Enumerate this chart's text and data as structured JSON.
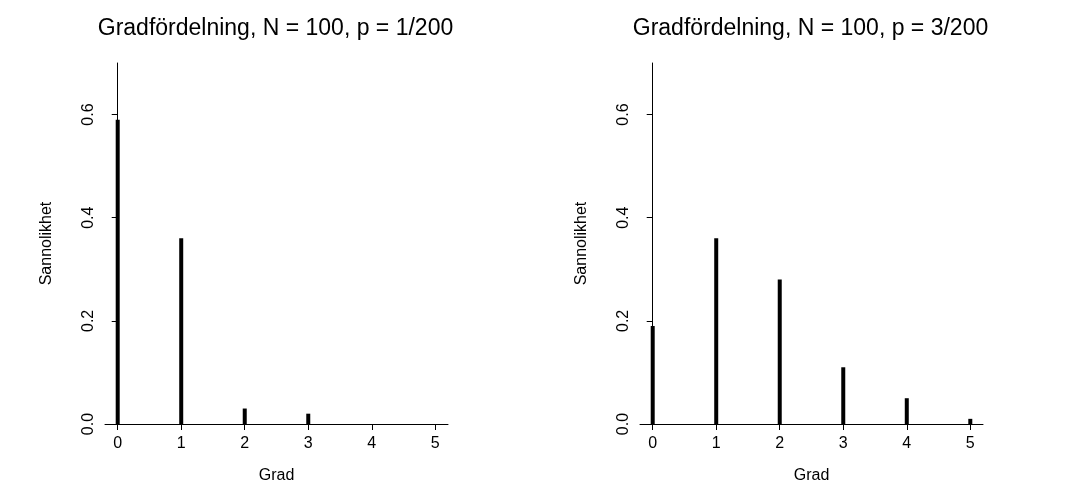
{
  "chart_data": [
    {
      "type": "bar",
      "title": "Gradfördelning, N = 100, p = 1/200",
      "xlabel": "Grad",
      "ylabel": "Sannolikhet",
      "x": [
        0,
        1,
        2,
        3
      ],
      "values": [
        0.59,
        0.36,
        0.03,
        0.02
      ],
      "color": "#000000",
      "xlim": [
        -0.2,
        5.2
      ],
      "xticks": [
        0,
        1,
        2,
        3,
        4,
        5
      ],
      "ylim": [
        0,
        0.7
      ],
      "yticks": [
        {
          "value": 0,
          "label": "0.0"
        },
        0.2,
        0.4,
        0.6
      ]
    },
    {
      "type": "bar",
      "title": "Gradfördelning, N = 100, p = 3/200",
      "xlabel": "Grad",
      "ylabel": "Sannolikhet",
      "x": [
        0,
        1,
        2,
        3,
        4,
        5
      ],
      "values": [
        0.19,
        0.36,
        0.28,
        0.11,
        0.05,
        0.01
      ],
      "color": "#000000",
      "xlim": [
        -0.2,
        5.2
      ],
      "xticks": [
        0,
        1,
        2,
        3,
        4,
        5
      ],
      "ylim": [
        0,
        0.7
      ],
      "yticks": [
        {
          "value": 0,
          "label": "0.0"
        },
        0.2,
        0.4,
        0.6
      ]
    }
  ]
}
